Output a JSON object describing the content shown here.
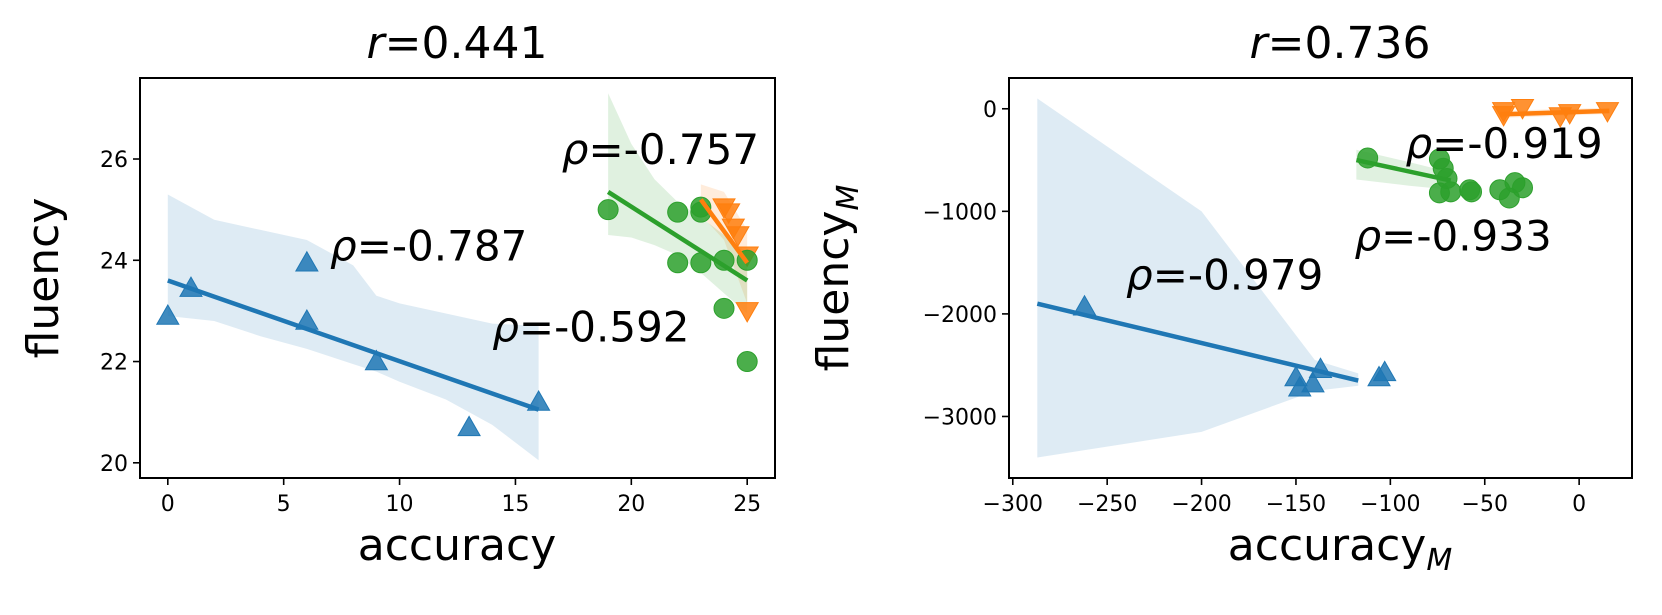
{
  "colors": {
    "blue": "#1f77b4",
    "orange": "#ff7f0e",
    "green": "#2ca02c"
  },
  "chart_data": [
    {
      "type": "scatter",
      "title": "r=0.441",
      "title_prefix": "r",
      "title_value": "=0.441",
      "xlabel": "accuracy",
      "ylabel": "fluency",
      "xlim": [
        -1.2,
        26.2
      ],
      "ylim": [
        19.7,
        27.6
      ],
      "xticks": [
        0,
        5,
        10,
        15,
        20,
        25
      ],
      "yticks": [
        20,
        22,
        24,
        26
      ],
      "grid": false,
      "series": [
        {
          "color": "#1f77b4",
          "marker": "triangle-up",
          "points": [
            [
              0,
              22.9
            ],
            [
              1,
              23.45
            ],
            [
              6,
              23.95
            ],
            [
              6,
              22.8
            ],
            [
              9,
              22.0
            ],
            [
              13,
              20.7
            ],
            [
              16,
              21.2
            ]
          ],
          "fit": {
            "x": [
              0,
              16
            ],
            "y": [
              23.6,
              21.05
            ]
          },
          "band": {
            "x": [
              0,
              2,
              4,
              6,
              8,
              9,
              10,
              12,
              14,
              16
            ],
            "upper": [
              25.3,
              24.8,
              24.6,
              24.4,
              23.9,
              23.3,
              23.15,
              22.95,
              22.75,
              22.7
            ],
            "lower": [
              22.9,
              22.8,
              22.5,
              22.25,
              21.95,
              21.8,
              21.6,
              21.25,
              20.75,
              20.05
            ]
          },
          "annotation": {
            "prefix": "ρ",
            "value": "=-0.787",
            "x": 7.0,
            "y": 24.0
          }
        },
        {
          "color": "#ff7f0e",
          "marker": "triangle-down",
          "points": [
            [
              24,
              25.05
            ],
            [
              24.2,
              24.95
            ],
            [
              24.4,
              24.65
            ],
            [
              24.6,
              24.5
            ],
            [
              25,
              24.1
            ],
            [
              25,
              23.0
            ]
          ],
          "fit": {
            "x": [
              23,
              25
            ],
            "y": [
              25.2,
              23.95
            ]
          },
          "band": {
            "x": [
              23,
              24,
              25
            ],
            "upper": [
              25.5,
              25.35,
              24.6
            ],
            "lower": [
              24.9,
              24.4,
              23.15
            ]
          },
          "annotation": {
            "prefix": "ρ",
            "value": "=-0.592",
            "x": 14.0,
            "y": 22.4
          }
        },
        {
          "color": "#2ca02c",
          "marker": "circle",
          "points": [
            [
              19,
              25.0
            ],
            [
              22,
              24.95
            ],
            [
              22,
              23.95
            ],
            [
              23,
              24.95
            ],
            [
              23,
              25.05
            ],
            [
              23,
              23.95
            ],
            [
              24,
              24.0
            ],
            [
              24,
              23.05
            ],
            [
              25,
              24.0
            ],
            [
              25,
              22.0
            ]
          ],
          "fit": {
            "x": [
              19,
              25
            ],
            "y": [
              25.35,
              23.6
            ]
          },
          "band": {
            "x": [
              19,
              20,
              21,
              22,
              23,
              24,
              25
            ],
            "upper": [
              27.3,
              26.3,
              25.6,
              25.15,
              24.85,
              24.5,
              24.15
            ],
            "lower": [
              24.5,
              24.45,
              24.3,
              24.1,
              23.75,
              23.35,
              22.95
            ]
          },
          "annotation": {
            "prefix": "ρ",
            "value": "=-0.757",
            "x": 17.0,
            "y": 25.9
          }
        }
      ]
    },
    {
      "type": "scatter",
      "title": "r=0.736",
      "title_prefix": "r",
      "title_value": "=0.736",
      "xlabel": "accuracy",
      "xlabel_sub": "M",
      "ylabel": "fluency",
      "ylabel_sub": "M",
      "xlim": [
        -302,
        28
      ],
      "ylim": [
        -3600,
        300
      ],
      "xticks": [
        -300,
        -250,
        -200,
        -150,
        -100,
        -50,
        0
      ],
      "xticklabels": [
        "−300",
        "−250",
        "−200",
        "−150",
        "−100",
        "−50",
        "0"
      ],
      "yticks": [
        0,
        -1000,
        -2000,
        -3000
      ],
      "yticklabels": [
        "0",
        "−1000",
        "−2000",
        "−3000"
      ],
      "grid": false,
      "series": [
        {
          "color": "#1f77b4",
          "marker": "triangle-up",
          "points": [
            [
              -262,
              -1930
            ],
            [
              -150,
              -2620
            ],
            [
              -148,
              -2720
            ],
            [
              -141,
              -2680
            ],
            [
              -137,
              -2540
            ],
            [
              -106,
              -2620
            ],
            [
              -103,
              -2570
            ]
          ],
          "fit": {
            "x": [
              -287,
              -117
            ],
            "y": [
              -1900,
              -2650
            ]
          },
          "band": {
            "x": [
              -287,
              -200,
              -140,
              -117
            ],
            "upper": [
              100,
              -1000,
              -2450,
              -2580
            ],
            "lower": [
              -3400,
              -3150,
              -2750,
              -2700
            ]
          },
          "annotation": {
            "prefix": "ρ",
            "value": "=-0.979",
            "x": -240,
            "y": -1760
          }
        },
        {
          "color": "#ff7f0e",
          "marker": "triangle-down",
          "points": [
            [
              -40,
              -20
            ],
            [
              -40,
              -60
            ],
            [
              -30,
              10
            ],
            [
              -10,
              -70
            ],
            [
              -5,
              -40
            ],
            [
              15,
              -20
            ]
          ],
          "fit": {
            "x": [
              -42,
              16
            ],
            "y": [
              -55,
              -20
            ]
          },
          "band": {
            "x": [
              -42,
              16
            ],
            "upper": [
              -20,
              10
            ],
            "lower": [
              -90,
              -50
            ]
          },
          "annotation": {
            "prefix": "ρ",
            "value": "=-0.919",
            "x": -92,
            "y": -480
          }
        },
        {
          "color": "#2ca02c",
          "marker": "circle",
          "points": [
            [
              -112,
              -480
            ],
            [
              -74,
              -490
            ],
            [
              -72,
              -580
            ],
            [
              -70,
              -680
            ],
            [
              -68,
              -810
            ],
            [
              -74,
              -820
            ],
            [
              -58,
              -790
            ],
            [
              -57,
              -810
            ],
            [
              -42,
              -790
            ],
            [
              -37,
              -870
            ],
            [
              -34,
              -720
            ],
            [
              -30,
              -770
            ]
          ],
          "fit": {
            "x": [
              -118,
              -68
            ],
            "y": [
              -500,
              -700
            ]
          },
          "band": {
            "x": [
              -118,
              -90,
              -68
            ],
            "upper": [
              -400,
              -520,
              -620
            ],
            "lower": [
              -690,
              -750,
              -790
            ]
          },
          "annotation": {
            "prefix": "ρ",
            "value": "=-0.933",
            "x": -119,
            "y": -1380
          }
        }
      ]
    }
  ]
}
